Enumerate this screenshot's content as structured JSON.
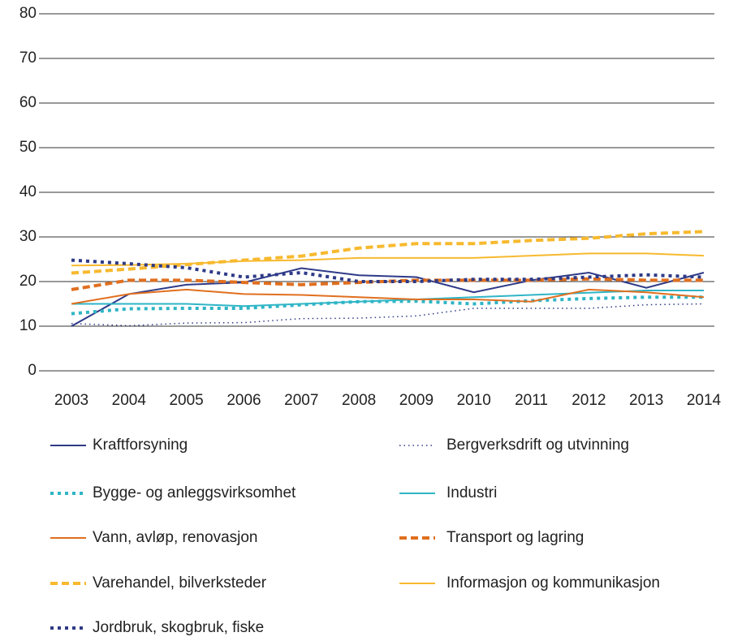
{
  "chart_data": {
    "type": "line",
    "x": [
      "2003",
      "2004",
      "2005",
      "2006",
      "2007",
      "2008",
      "2009",
      "2010",
      "2011",
      "2012",
      "2013",
      "2014"
    ],
    "ylim": [
      0,
      80
    ],
    "yticks": [
      0,
      10,
      20,
      30,
      40,
      50,
      60,
      70,
      80
    ],
    "grid": true,
    "series": [
      {
        "name": "Kraftforsyning",
        "color": "#2e3a87",
        "style": "solid",
        "values": [
          10,
          17.2,
          19.3,
          19.8,
          23,
          21.4,
          21,
          17.6,
          20.3,
          22,
          18.6,
          22
        ]
      },
      {
        "name": "Bergverksdrift og utvinning",
        "color": "#2e3a87",
        "style": "dotted",
        "values": [
          10.6,
          10.1,
          10.7,
          10.8,
          11.7,
          11.8,
          12.3,
          14,
          14,
          14,
          14.8,
          15
        ]
      },
      {
        "name": "Bygge- og anleggsvirksomhet",
        "color": "#2fb5c6",
        "style": "dotted-bold",
        "values": [
          12.8,
          13.9,
          14,
          14,
          14.8,
          15.5,
          15.6,
          15,
          15.7,
          16.2,
          16.5,
          16.5
        ]
      },
      {
        "name": "Industri",
        "color": "#2fb5c6",
        "style": "solid",
        "values": [
          15,
          15,
          15,
          14.5,
          15,
          15.5,
          16,
          16.5,
          17,
          17.5,
          18,
          18
        ]
      },
      {
        "name": "Vann, avløp, renovasjon",
        "color": "#e06f1f",
        "style": "solid",
        "values": [
          15,
          17.2,
          18.2,
          17.2,
          17,
          16.5,
          16,
          16,
          15.5,
          18.2,
          17.6,
          16.5
        ]
      },
      {
        "name": "Transport og lagring",
        "color": "#e06f1f",
        "style": "dashed",
        "values": [
          18.2,
          20.3,
          20.3,
          19.8,
          19.3,
          19.8,
          20.3,
          20.3,
          20.3,
          20.6,
          20.3,
          20.3
        ]
      },
      {
        "name": "Varehandel, bilverksteder",
        "color": "#f7b92e",
        "style": "dashed",
        "values": [
          21.9,
          22.8,
          23.8,
          24.8,
          25.7,
          27.5,
          28.5,
          28.5,
          29.2,
          29.7,
          30.7,
          31.2
        ]
      },
      {
        "name": "Informasjon og kommunikasjon",
        "color": "#f7b92e",
        "style": "solid",
        "values": [
          23.6,
          23.7,
          24,
          24.6,
          24.8,
          25.3,
          25.3,
          25.3,
          25.8,
          26.3,
          26.3,
          25.8
        ]
      },
      {
        "name": "Jordbruk, skogbruk, fiske",
        "color": "#2e3a87",
        "style": "dotted-bold",
        "values": [
          24.8,
          24,
          23.1,
          21,
          22,
          20,
          20,
          20.5,
          20.5,
          21,
          21.5,
          21
        ]
      }
    ]
  }
}
